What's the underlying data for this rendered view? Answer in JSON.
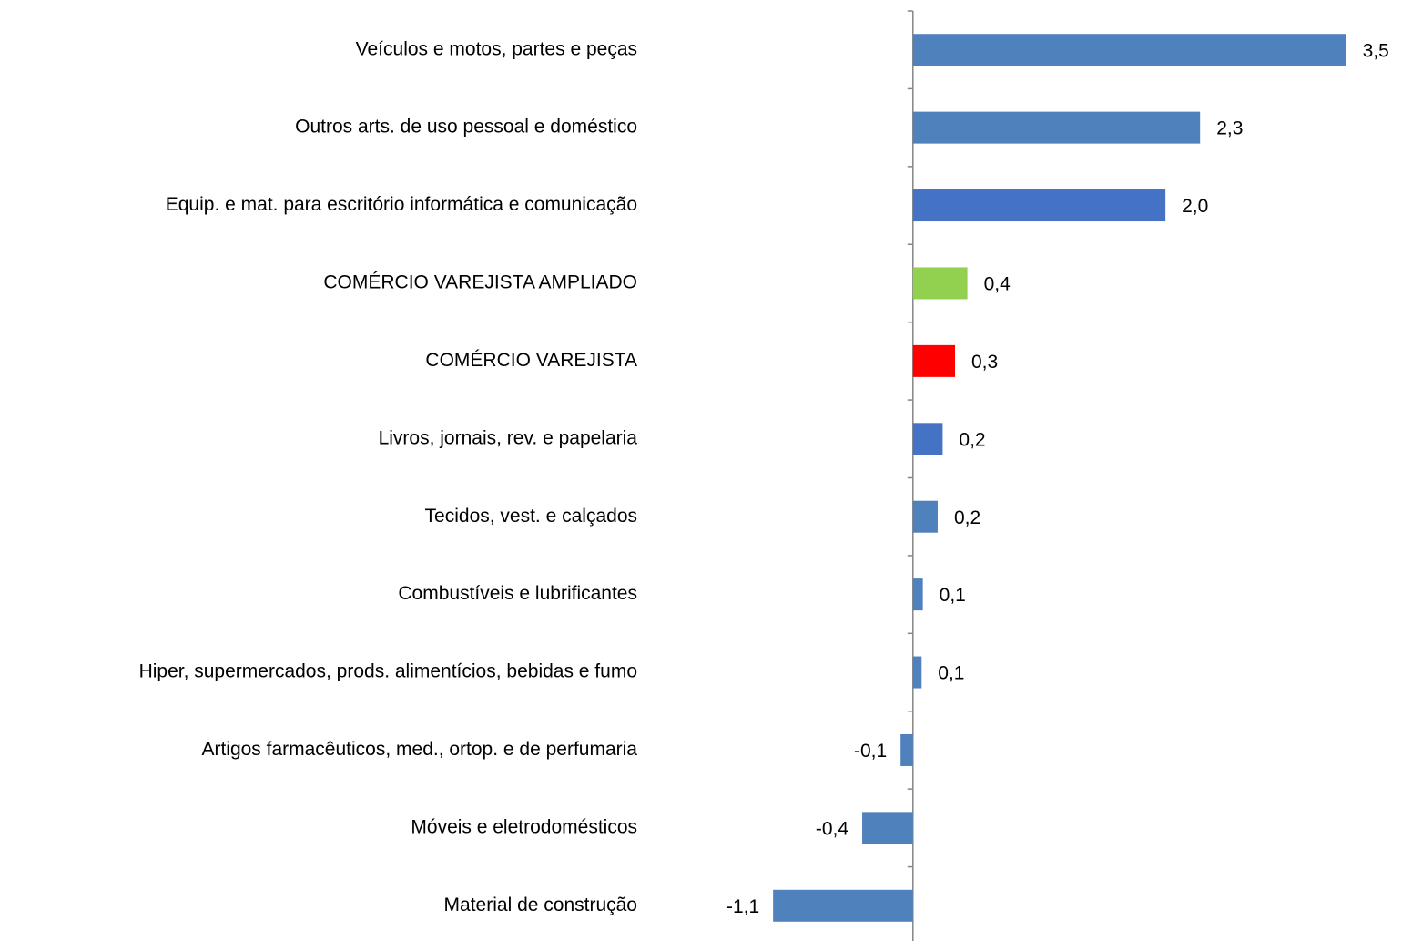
{
  "chart_data": {
    "type": "barh",
    "categories": [
      "Veículos e motos, partes e peças",
      "Outros arts. de uso pessoal e doméstico",
      "Equip. e mat. para escritório informática e comunicação",
      "COMÉRCIO VAREJISTA AMPLIADO",
      "COMÉRCIO VAREJISTA",
      "Livros, jornais, rev. e papelaria",
      "Tecidos, vest. e calçados",
      "Combustíveis e lubrificantes",
      "Hiper, supermercados, prods.  alimentícios, bebidas e fumo",
      "Artigos farmacêuticos, med., ortop. e de perfumaria",
      "Móveis e eletrodomésticos",
      "Material de construção"
    ],
    "values": [
      3.5,
      2.32,
      2.04,
      0.44,
      0.34,
      0.24,
      0.2,
      0.08,
      0.07,
      -0.1,
      -0.41,
      -1.13
    ],
    "value_labels": [
      "3,5",
      "2,3",
      "2,0",
      "0,4",
      "0,3",
      "0,2",
      "0,2",
      "0,1",
      "0,1",
      "-0,1",
      "-0,4",
      "-1,1"
    ],
    "colors": [
      "#4f81bd",
      "#4f81bd",
      "#4472c4",
      "#92d050",
      "#ff0000",
      "#4472c4",
      "#4f81bd",
      "#4f81bd",
      "#4f81bd",
      "#4f81bd",
      "#4f81bd",
      "#4f81bd"
    ],
    "xlim": [
      -2.08,
      3.9
    ]
  }
}
